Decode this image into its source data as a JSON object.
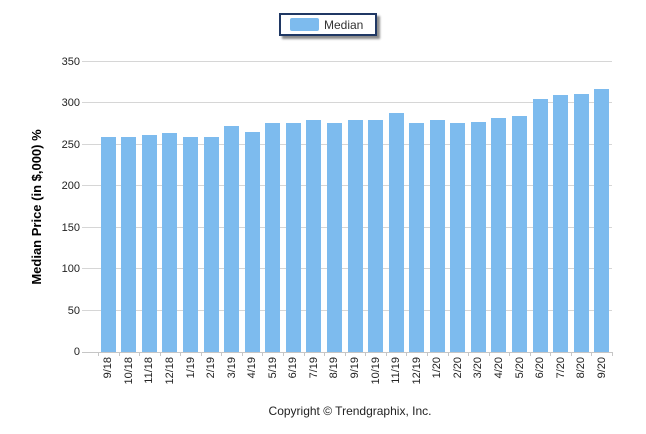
{
  "legend": {
    "label": "Median",
    "swatch_color": "#7dbbee"
  },
  "footer": {
    "copyright": "Copyright © Trendgraphix, Inc."
  },
  "colors": {
    "bar": "#7dbbee",
    "gridline": "#d6d6d6",
    "axis_line": "#c6c6c6",
    "legend_border": "#203864",
    "text": "#222222"
  },
  "chart_data": {
    "type": "bar",
    "title": "",
    "ylabel": "Median Price (in $,000) %",
    "xlabel": "",
    "ylim": [
      0,
      350
    ],
    "ytick_interval": 50,
    "yticks": [
      0,
      50,
      100,
      150,
      200,
      250,
      300,
      350
    ],
    "grid": true,
    "legend_position": "top-center",
    "series_name": "Median",
    "categories": [
      "9/18",
      "10/18",
      "11/18",
      "12/18",
      "1/19",
      "2/19",
      "3/19",
      "4/19",
      "5/19",
      "6/19",
      "7/19",
      "8/19",
      "9/19",
      "10/19",
      "11/19",
      "12/19",
      "1/20",
      "2/20",
      "3/20",
      "4/20",
      "5/20",
      "6/20",
      "7/20",
      "8/20",
      "9/20"
    ],
    "values": [
      260,
      260,
      262,
      264,
      260,
      259,
      273,
      266,
      276,
      276,
      280,
      277,
      280,
      280,
      289,
      276,
      280,
      276,
      278,
      283,
      285,
      305,
      310,
      312,
      318
    ]
  }
}
